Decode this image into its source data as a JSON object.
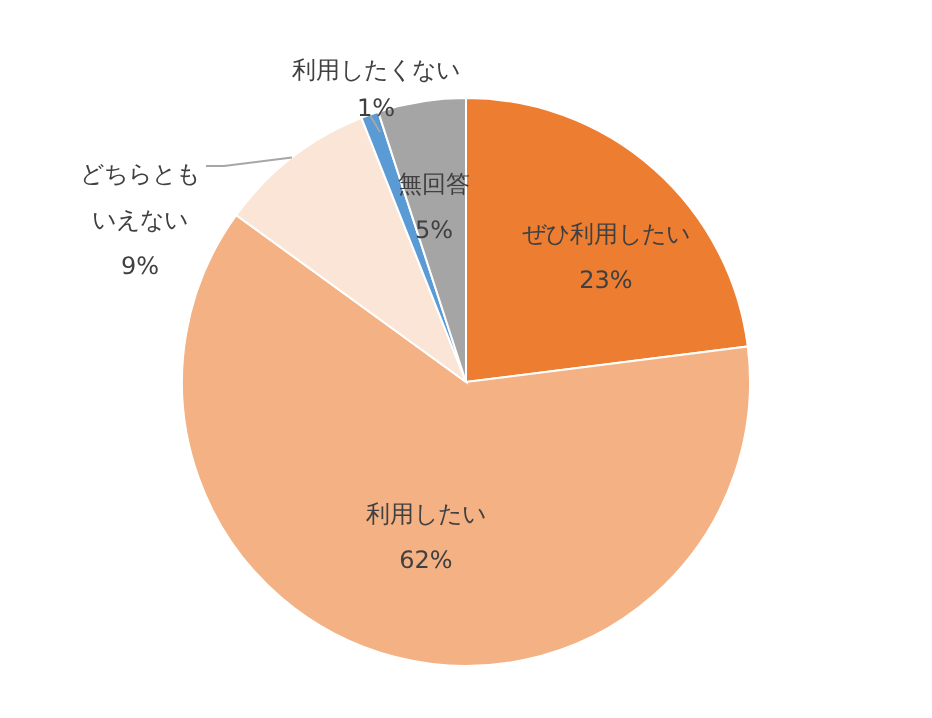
{
  "chart_data": {
    "type": "pie",
    "categories": [
      "ぜひ利用したい",
      "利用したい",
      "どちらともいえない",
      "利用したくない",
      "無回答"
    ],
    "values": [
      23,
      62,
      9,
      1,
      5
    ],
    "colors": [
      "#ed7d31",
      "#f4b183",
      "#fbe5d6",
      "#5b9bd5",
      "#a5a5a5"
    ],
    "legend": false,
    "value_labels": [
      "23%",
      "62%",
      "9%",
      "1%",
      "5%"
    ]
  }
}
